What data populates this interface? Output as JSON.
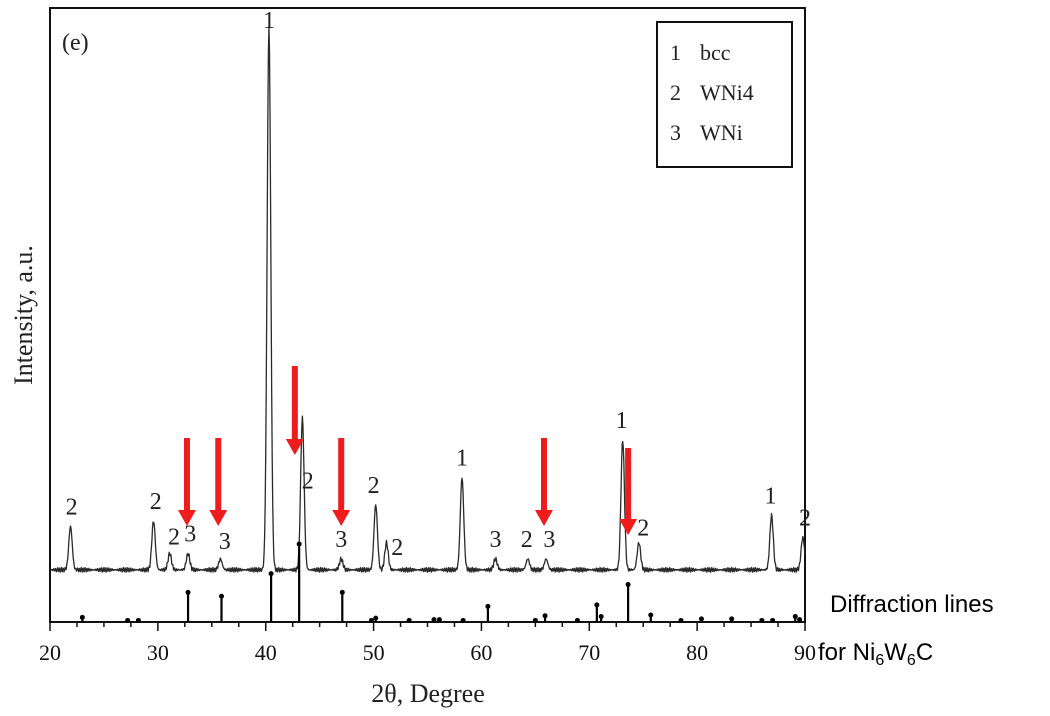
{
  "chart_data": {
    "type": "line",
    "panel_label": "(e)",
    "xlabel": "2θ, Degree",
    "ylabel": "Intensity, a.u.",
    "xlim": [
      20,
      90
    ],
    "xticks": [
      20,
      30,
      40,
      50,
      60,
      70,
      80,
      90
    ],
    "xtick_labels": [
      "20",
      "30",
      "40",
      "50",
      "60",
      "70",
      "80",
      "90"
    ],
    "legend": {
      "placement": "top-right",
      "entries": [
        {
          "num": "1",
          "phase": "bcc"
        },
        {
          "num": "2",
          "phase": "WNi4"
        },
        {
          "num": "3",
          "phase": "WNi"
        }
      ]
    },
    "xrd_pattern": {
      "baseline": 4,
      "peaks": [
        {
          "x": 21.9,
          "y": 8
        },
        {
          "x": 29.6,
          "y": 9
        },
        {
          "x": 31.1,
          "y": 3
        },
        {
          "x": 32.8,
          "y": 3
        },
        {
          "x": 35.8,
          "y": 2
        },
        {
          "x": 40.3,
          "y": 100
        },
        {
          "x": 43.4,
          "y": 28
        },
        {
          "x": 47.0,
          "y": 2
        },
        {
          "x": 50.2,
          "y": 12
        },
        {
          "x": 51.2,
          "y": 5
        },
        {
          "x": 58.2,
          "y": 17
        },
        {
          "x": 61.3,
          "y": 2
        },
        {
          "x": 64.3,
          "y": 2
        },
        {
          "x": 66.0,
          "y": 2
        },
        {
          "x": 73.1,
          "y": 24
        },
        {
          "x": 74.6,
          "y": 5
        },
        {
          "x": 86.9,
          "y": 10
        },
        {
          "x": 89.8,
          "y": 6
        }
      ]
    },
    "peak_labels": [
      {
        "x": 22.0,
        "text": "2"
      },
      {
        "x": 29.8,
        "text": "2"
      },
      {
        "x": 31.5,
        "text": "2"
      },
      {
        "x": 33.0,
        "text": "3"
      },
      {
        "x": 36.2,
        "text": "3"
      },
      {
        "x": 40.3,
        "text": "1"
      },
      {
        "x": 43.9,
        "text": "2"
      },
      {
        "x": 47.0,
        "text": "3"
      },
      {
        "x": 50.0,
        "text": "2"
      },
      {
        "x": 52.2,
        "text": "2"
      },
      {
        "x": 58.2,
        "text": "1"
      },
      {
        "x": 61.3,
        "text": "3"
      },
      {
        "x": 64.2,
        "text": "2"
      },
      {
        "x": 66.3,
        "text": "3"
      },
      {
        "x": 73.0,
        "text": "1"
      },
      {
        "x": 75.0,
        "text": "2"
      },
      {
        "x": 86.8,
        "text": "1"
      },
      {
        "x": 90.0,
        "text": "2"
      }
    ],
    "diffraction_lines": {
      "label_line1": "Diffraction lines",
      "label_line2_parts": [
        {
          "text": "for Ni",
          "sub": false
        },
        {
          "text": "6",
          "sub": true
        },
        {
          "text": "W",
          "sub": false
        },
        {
          "text": "6",
          "sub": true
        },
        {
          "text": "C",
          "sub": false
        }
      ],
      "lines": [
        {
          "x": 23.0,
          "h": 6
        },
        {
          "x": 27.2,
          "h": 2
        },
        {
          "x": 28.2,
          "h": 2
        },
        {
          "x": 32.8,
          "h": 38
        },
        {
          "x": 35.9,
          "h": 33
        },
        {
          "x": 40.5,
          "h": 62
        },
        {
          "x": 43.1,
          "h": 100
        },
        {
          "x": 47.1,
          "h": 38
        },
        {
          "x": 49.8,
          "h": 2
        },
        {
          "x": 50.2,
          "h": 5
        },
        {
          "x": 53.3,
          "h": 2
        },
        {
          "x": 55.6,
          "h": 3
        },
        {
          "x": 56.1,
          "h": 3
        },
        {
          "x": 58.3,
          "h": 2
        },
        {
          "x": 60.6,
          "h": 20
        },
        {
          "x": 65.0,
          "h": 2
        },
        {
          "x": 65.9,
          "h": 8
        },
        {
          "x": 68.9,
          "h": 2
        },
        {
          "x": 70.7,
          "h": 22
        },
        {
          "x": 71.1,
          "h": 7
        },
        {
          "x": 73.6,
          "h": 48
        },
        {
          "x": 75.7,
          "h": 9
        },
        {
          "x": 78.5,
          "h": 2
        },
        {
          "x": 80.4,
          "h": 4
        },
        {
          "x": 83.2,
          "h": 4
        },
        {
          "x": 86.0,
          "h": 2
        },
        {
          "x": 87.0,
          "h": 2
        },
        {
          "x": 89.1,
          "h": 7
        },
        {
          "x": 89.5,
          "h": 3
        }
      ]
    },
    "red_arrows": [
      {
        "x": 32.7,
        "length": "long"
      },
      {
        "x": 35.6,
        "length": "long"
      },
      {
        "x": 42.7,
        "length": "long"
      },
      {
        "x": 47.0,
        "length": "long"
      },
      {
        "x": 65.8,
        "length": "long"
      },
      {
        "x": 73.6,
        "length": "short"
      }
    ],
    "colors": {
      "trace": "#2a2a2a",
      "arrows": "#ee1c1c",
      "axes": "#111111"
    }
  }
}
